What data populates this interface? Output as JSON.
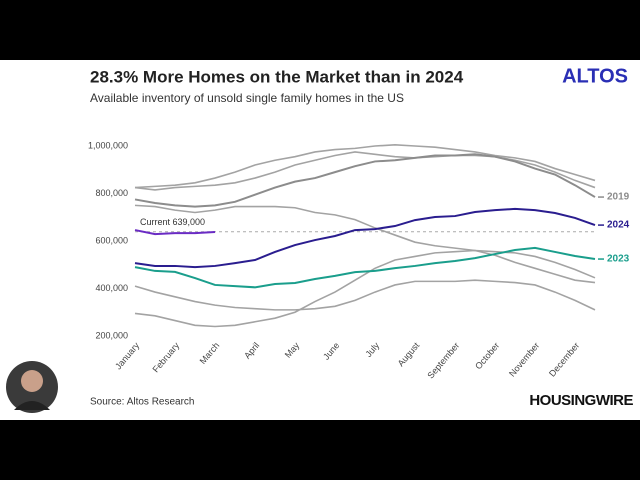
{
  "chart_data": {
    "type": "line",
    "title": "28.3% More Homes on the Market than in 2024",
    "subtitle": "Available inventory of unsold single family homes in the US",
    "brand": "ALTOS",
    "source": "Source: Altos Research",
    "publisher": "HOUSINGWIRE",
    "annotation": "Current 639,000",
    "reference_line": 639000,
    "categories": [
      "January",
      null,
      "February",
      null,
      "March",
      null,
      "April",
      null,
      "May",
      null,
      "June",
      null,
      "July",
      null,
      "August",
      null,
      "September",
      null,
      "October",
      null,
      "November",
      null,
      "December",
      null
    ],
    "ylim": [
      200000,
      1000000
    ],
    "yticks": [
      {
        "value": 200000,
        "label": "200,000"
      },
      {
        "value": 400000,
        "label": "400,000"
      },
      {
        "value": 600000,
        "label": "600,000"
      },
      {
        "value": 800000,
        "label": "800,000"
      },
      {
        "value": 1000000,
        "label": "1,000,000"
      }
    ],
    "grid": false,
    "series": [
      {
        "color": "#a3a3a3",
        "values": [
          825000,
          830000,
          835000,
          845000,
          865000,
          890000,
          920000,
          940000,
          955000,
          975000,
          985000,
          990000,
          1000000,
          1005000,
          1000000,
          995000,
          985000,
          975000,
          960000,
          950000,
          935000,
          905000,
          880000,
          855000
        ]
      },
      {
        "color": "#a3a3a3",
        "values": [
          825000,
          815000,
          825000,
          830000,
          835000,
          845000,
          865000,
          890000,
          920000,
          940000,
          960000,
          975000,
          965000,
          955000,
          950000,
          955000,
          960000,
          960000,
          955000,
          940000,
          920000,
          890000,
          855000,
          825000
        ]
      },
      {
        "name": "2019",
        "color": "#8c8c8c",
        "values": [
          775000,
          760000,
          750000,
          745000,
          750000,
          765000,
          795000,
          825000,
          850000,
          865000,
          890000,
          915000,
          935000,
          940000,
          950000,
          960000,
          960000,
          965000,
          955000,
          935000,
          905000,
          880000,
          835000,
          785000
        ]
      },
      {
        "color": "#a3a3a3",
        "values": [
          750000,
          745000,
          730000,
          720000,
          730000,
          745000,
          745000,
          745000,
          740000,
          720000,
          710000,
          690000,
          655000,
          625000,
          595000,
          580000,
          570000,
          560000,
          540000,
          510000,
          485000,
          460000,
          435000,
          425000
        ]
      },
      {
        "color": "#a3a3a3",
        "values": [
          410000,
          385000,
          365000,
          345000,
          330000,
          320000,
          315000,
          310000,
          310000,
          315000,
          325000,
          350000,
          385000,
          415000,
          430000,
          430000,
          430000,
          435000,
          430000,
          425000,
          415000,
          385000,
          350000,
          310000
        ]
      },
      {
        "color": "#a3a3a3",
        "values": [
          295000,
          285000,
          265000,
          245000,
          240000,
          245000,
          260000,
          275000,
          300000,
          345000,
          385000,
          435000,
          485000,
          520000,
          535000,
          550000,
          555000,
          560000,
          555000,
          550000,
          535000,
          510000,
          480000,
          445000
        ]
      },
      {
        "name": "2023",
        "color": "#1a9e8c",
        "values": [
          490000,
          474000,
          470000,
          444000,
          415000,
          410000,
          405000,
          419000,
          423000,
          440000,
          453000,
          469000,
          474000,
          486000,
          495000,
          507000,
          516000,
          528000,
          545000,
          562000,
          571000,
          554000,
          537000,
          524000
        ]
      },
      {
        "name": "2024",
        "color": "#2a1d8f",
        "values": [
          507000,
          495000,
          495000,
          490000,
          495000,
          507000,
          520000,
          554000,
          583000,
          604000,
          621000,
          646000,
          650000,
          663000,
          688000,
          701000,
          705000,
          722000,
          730000,
          735000,
          730000,
          718000,
          697000,
          667000
        ]
      },
      {
        "color": "#6a2bc4",
        "values": [
          646000,
          629000,
          633000,
          633000,
          638000,
          null,
          null,
          null,
          null,
          null,
          null,
          null,
          null,
          null,
          null,
          null,
          null,
          null,
          null,
          null,
          null,
          null,
          null,
          null
        ]
      }
    ]
  }
}
